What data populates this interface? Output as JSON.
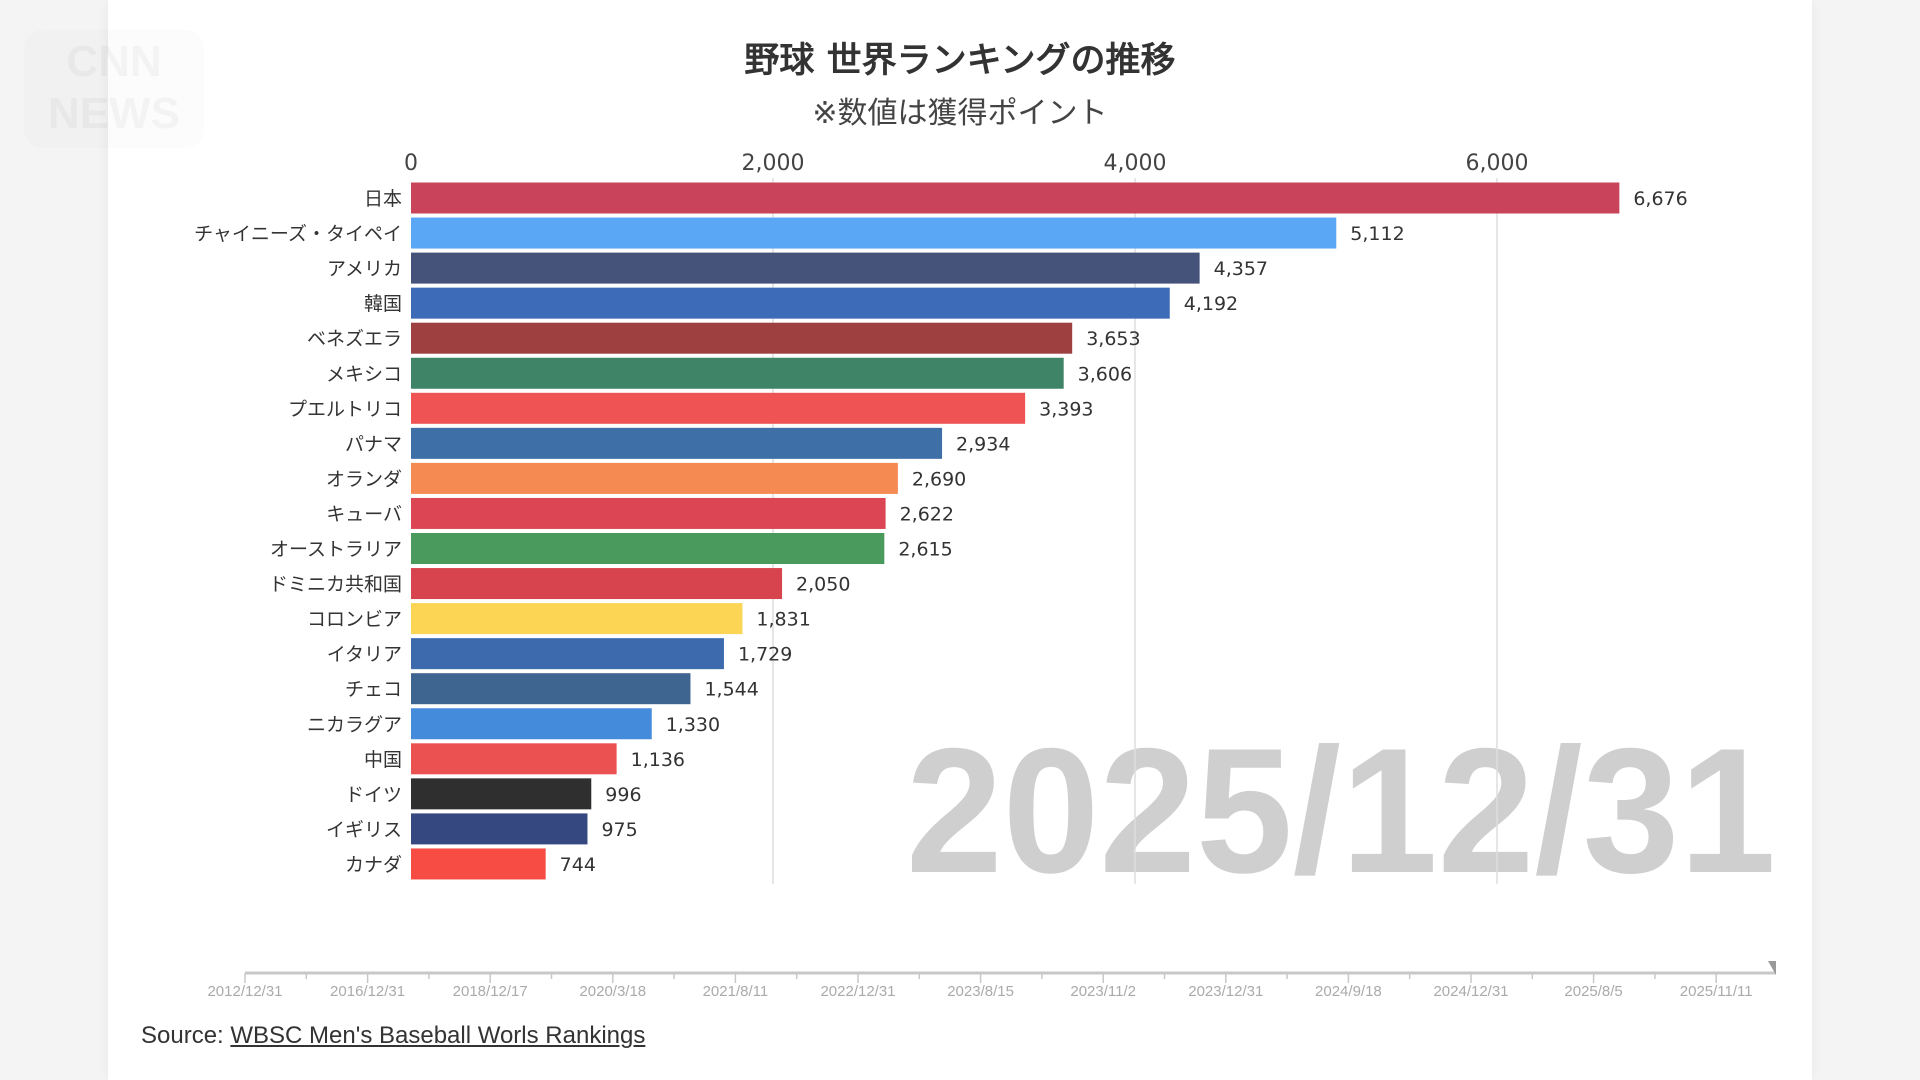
{
  "logo": {
    "text": "CNN NEWS"
  },
  "chart_data": {
    "type": "bar",
    "orientation": "horizontal",
    "title": "野球 世界ランキングの推移",
    "subtitle": "※数値は獲得ポイント",
    "date_label": "2025/12/31",
    "xlim": [
      0,
      7000
    ],
    "xticks": [
      0,
      2000,
      4000,
      6000
    ],
    "xtick_labels": [
      "0",
      "2,000",
      "4,000",
      "6,000"
    ],
    "axis_position": "top",
    "grid": true,
    "categories": [
      "日本",
      "チャイニーズ・タイペイ",
      "アメリカ",
      "韓国",
      "ベネズエラ",
      "メキシコ",
      "プエルトリコ",
      "パナマ",
      "オランダ",
      "キューバ",
      "オーストラリア",
      "ドミニカ共和国",
      "コロンビア",
      "イタリア",
      "チェコ",
      "ニカラグア",
      "中国",
      "ドイツ",
      "イギリス",
      "カナダ"
    ],
    "values": [
      6676,
      5112,
      4357,
      4192,
      3653,
      3606,
      3393,
      2934,
      2690,
      2622,
      2615,
      2050,
      1831,
      1729,
      1544,
      1330,
      1136,
      996,
      975,
      744
    ],
    "value_labels": [
      "6,676",
      "5,112",
      "4,357",
      "4,192",
      "3,653",
      "3,606",
      "3,393",
      "2,934",
      "2,690",
      "2,622",
      "2,615",
      "2,050",
      "1,831",
      "1,729",
      "1,544",
      "1,330",
      "1,136",
      "996",
      "975",
      "744"
    ],
    "colors": [
      "#c9435a",
      "#5aa7f5",
      "#45527a",
      "#3d6bb8",
      "#9e4040",
      "#3f8466",
      "#ef5353",
      "#3e6fa6",
      "#f58b53",
      "#dc4553",
      "#4a9a5e",
      "#d8444e",
      "#fbd553",
      "#3c6aad",
      "#3e6490",
      "#448bdb",
      "#ec5151",
      "#2f2f2f",
      "#364880",
      "#f64c44"
    ],
    "timeline_labels": [
      "2012/12/31",
      "2016/12/31",
      "2018/12/17",
      "2020/3/18",
      "2021/8/11",
      "2022/12/31",
      "2023/8/15",
      "2023/11/2",
      "2023/12/31",
      "2024/9/18",
      "2024/12/31",
      "2025/8/5",
      "2025/11/11"
    ],
    "timeline_progress": 1.0
  },
  "source": {
    "prefix": "Source: ",
    "link": "WBSC Men's Baseball Worls Rankings"
  }
}
